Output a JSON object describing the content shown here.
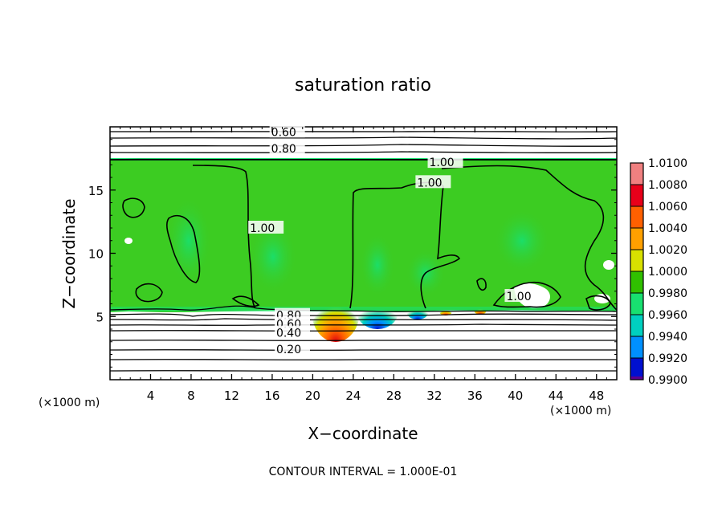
{
  "chart_data": {
    "type": "heatmap",
    "title": "saturation ratio",
    "xlabel": "X−coordinate",
    "ylabel": "Z−coordinate",
    "x_unit_left": "(×1000 m)",
    "x_unit_right": "(×1000 m)",
    "footer": "CONTOUR INTERVAL = 1.000E-01",
    "xlim": [
      0,
      50
    ],
    "ylim": [
      0,
      20
    ],
    "x_ticks": [
      4,
      8,
      12,
      16,
      20,
      24,
      28,
      32,
      36,
      40,
      44,
      48
    ],
    "y_ticks": [
      5,
      10,
      15
    ],
    "colorbar": {
      "levels": [
        "1.0100",
        "1.0080",
        "1.0060",
        "1.0040",
        "1.0020",
        "1.0000",
        "0.9980",
        "0.9960",
        "0.9940",
        "0.9920",
        "0.9900"
      ],
      "colors": [
        "#f08080",
        "#e8001a",
        "#ff6000",
        "#ffa000",
        "#d8e000",
        "#30c000",
        "#18e070",
        "#00d0c0",
        "#0090ff",
        "#0010d0",
        "#5a0090"
      ]
    },
    "field_color": "#3ccc22",
    "contour_labels": [
      {
        "text": "0.60",
        "x": 15.9,
        "z": 19.6
      },
      {
        "text": "0.80",
        "x": 15.9,
        "z": 18.3
      },
      {
        "text": "1.00",
        "x": 31.5,
        "z": 17.2
      },
      {
        "text": "1.00",
        "x": 30.3,
        "z": 15.6
      },
      {
        "text": "1.00",
        "x": 13.8,
        "z": 12.0
      },
      {
        "text": "1.00",
        "x": 39.1,
        "z": 6.6
      },
      {
        "text": "0.80",
        "x": 16.4,
        "z": 5.1
      },
      {
        "text": "0.60",
        "x": 16.4,
        "z": 4.4
      },
      {
        "text": "0.40",
        "x": 16.4,
        "z": 3.7
      },
      {
        "text": "0.20",
        "x": 16.4,
        "z": 2.4
      }
    ]
  }
}
